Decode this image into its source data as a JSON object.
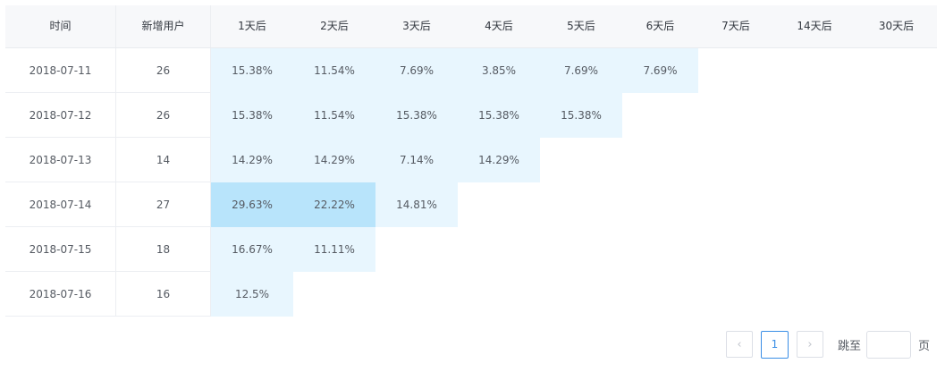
{
  "table": {
    "headers": {
      "date": "时间",
      "new_users": "新增用户",
      "d1": "1天后",
      "d2": "2天后",
      "d3": "3天后",
      "d4": "4天后",
      "d5": "5天后",
      "d6": "6天后",
      "d7": "7天后",
      "d14": "14天后",
      "d30": "30天后"
    },
    "rows": [
      {
        "date": "2018-07-11",
        "new_users": "26",
        "d1": "15.38%",
        "d2": "11.54%",
        "d3": "7.69%",
        "d4": "3.85%",
        "d5": "7.69%",
        "d6": "7.69%"
      },
      {
        "date": "2018-07-12",
        "new_users": "26",
        "d1": "15.38%",
        "d2": "11.54%",
        "d3": "15.38%",
        "d4": "15.38%",
        "d5": "15.38%"
      },
      {
        "date": "2018-07-13",
        "new_users": "14",
        "d1": "14.29%",
        "d2": "14.29%",
        "d3": "7.14%",
        "d4": "14.29%"
      },
      {
        "date": "2018-07-14",
        "new_users": "27",
        "d1": "29.63%",
        "d2": "22.22%",
        "d3": "14.81%"
      },
      {
        "date": "2018-07-15",
        "new_users": "18",
        "d1": "16.67%",
        "d2": "11.11%"
      },
      {
        "date": "2018-07-16",
        "new_users": "16",
        "d1": "12.5%"
      }
    ],
    "colors": {
      "light": "#e8f6fe",
      "strong": "#b8e4fb"
    }
  },
  "pagination": {
    "prev_icon": "‹",
    "current_page": "1",
    "next_icon": "›",
    "jump_label": "跳至",
    "jump_value": "",
    "jump_unit": "页"
  }
}
